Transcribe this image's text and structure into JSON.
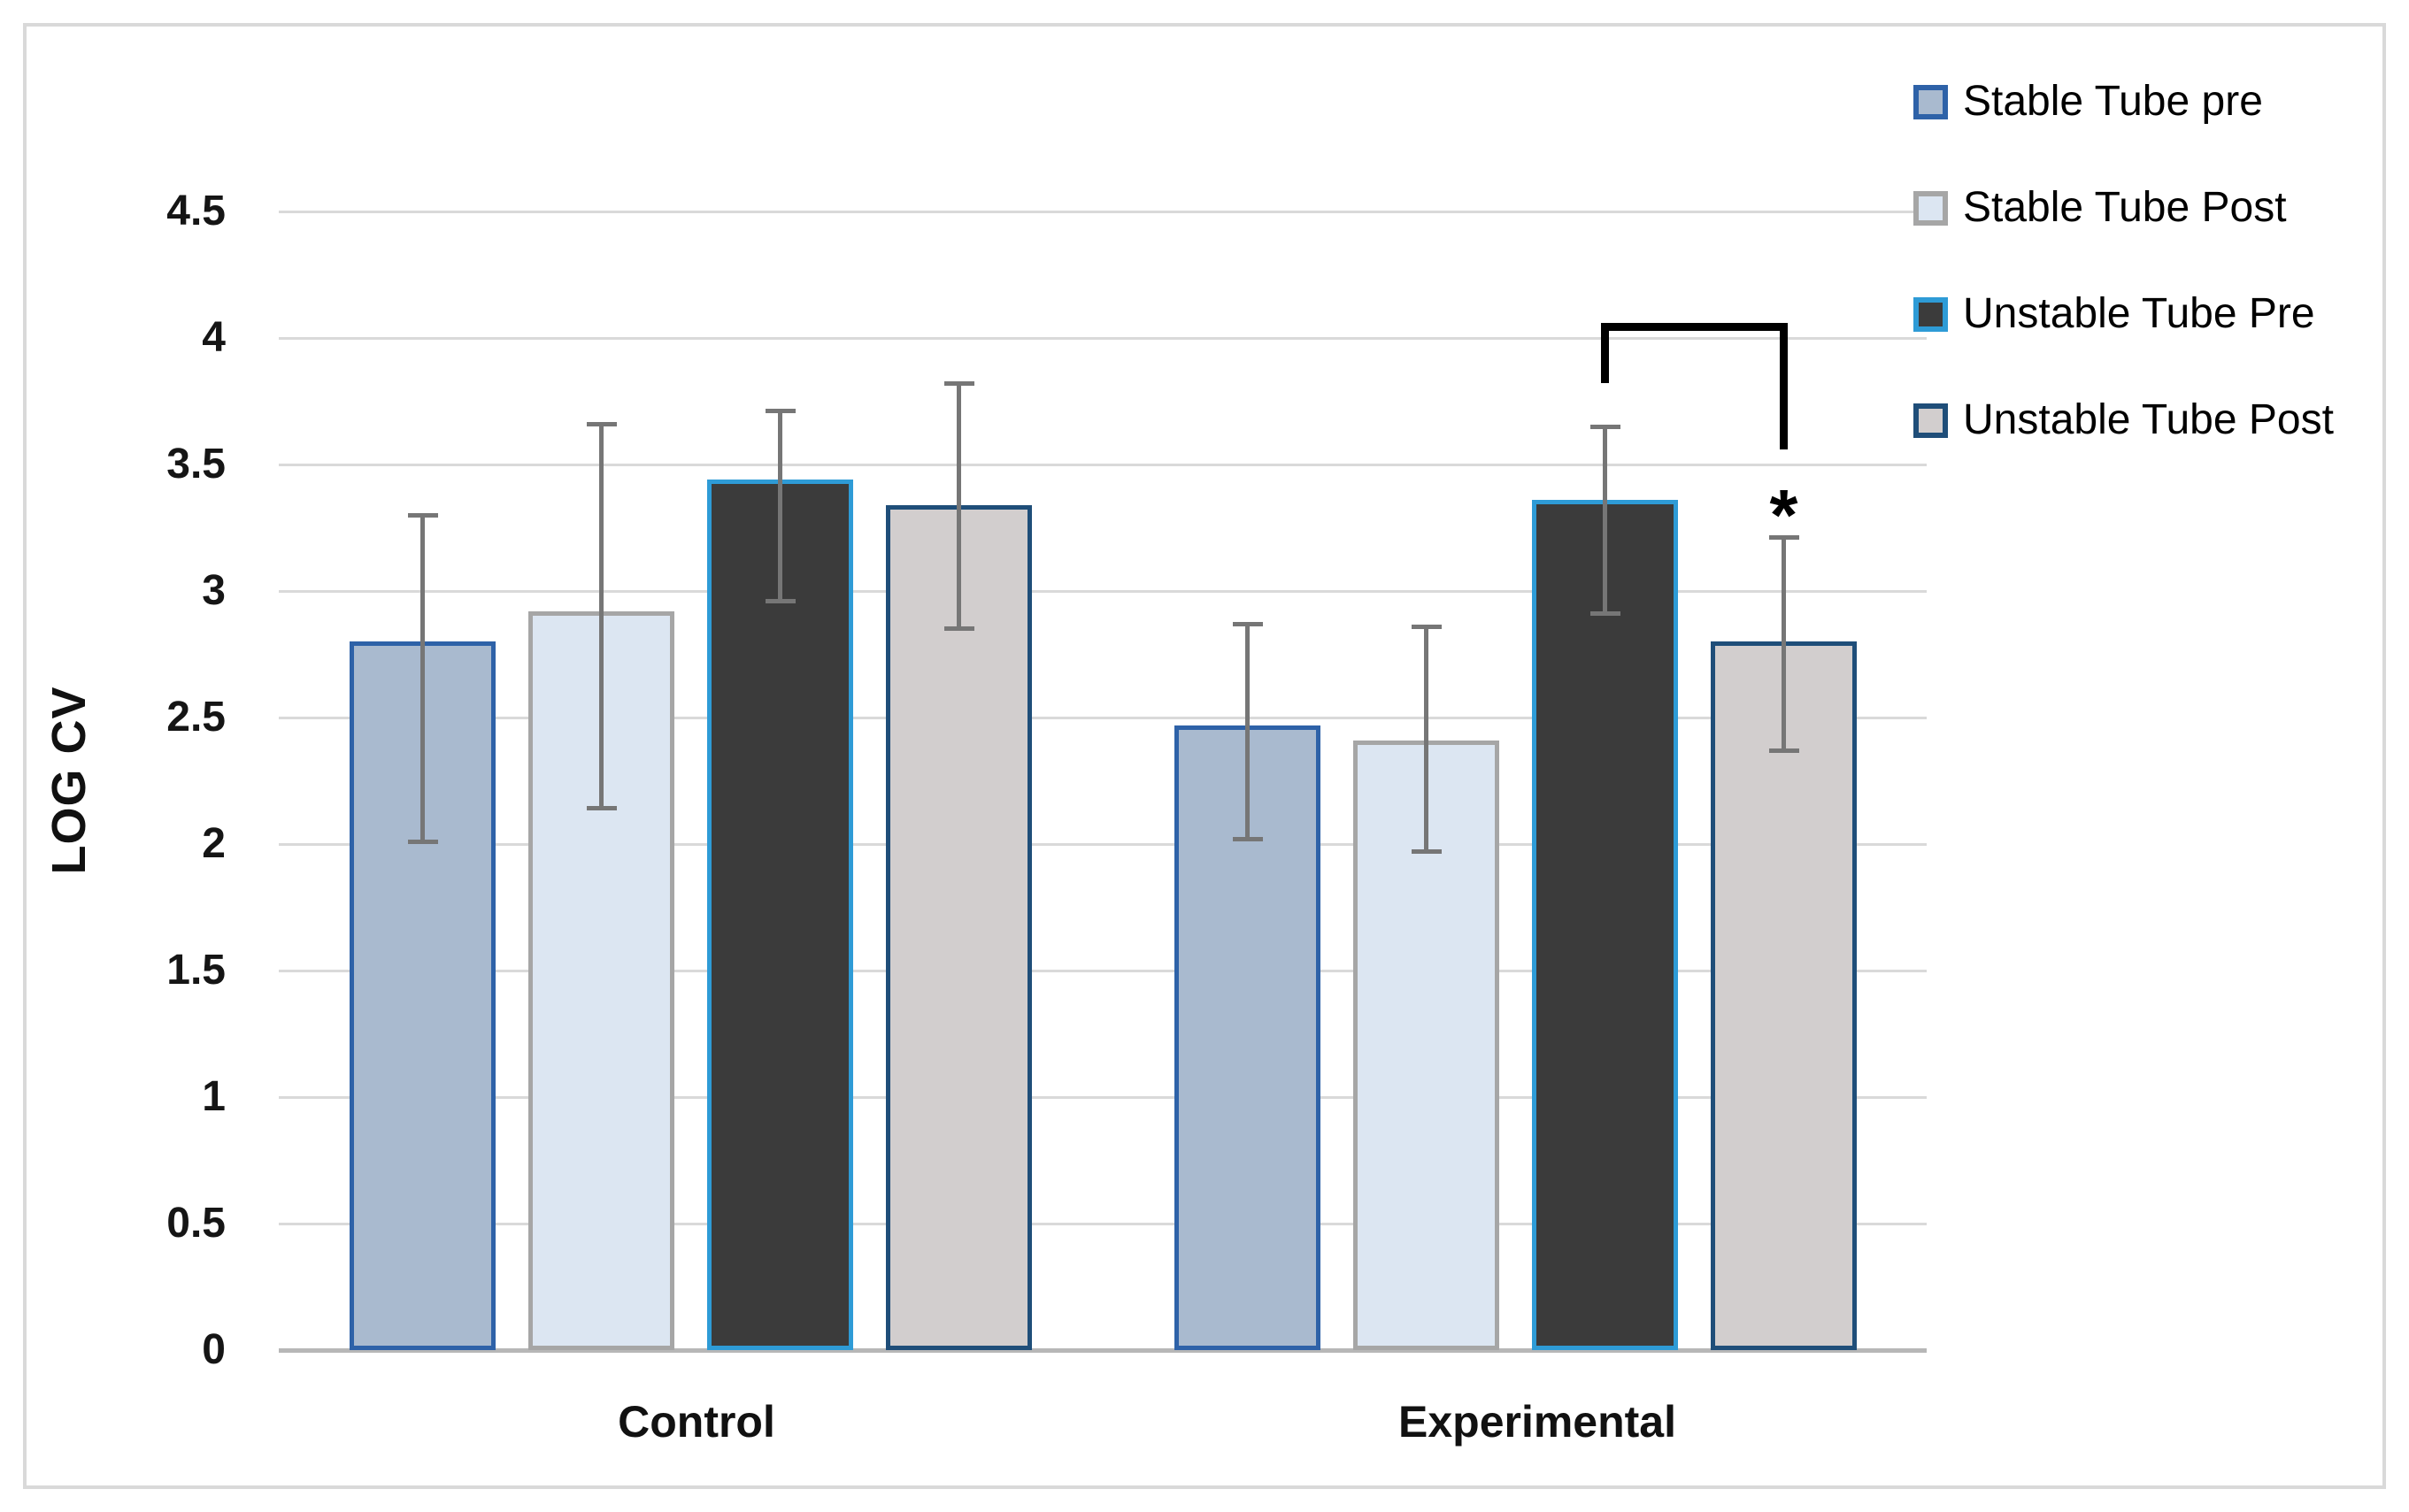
{
  "figure": {
    "background": "#ffffff",
    "border_color": "#d9d9d9"
  },
  "chart_data": {
    "type": "bar",
    "title": "",
    "xlabel": "",
    "ylabel": "LOG CV",
    "ylim": [
      0,
      4.5
    ],
    "grid": "horizontal",
    "legend_position": "top-right",
    "yticks": [
      {
        "value": 0,
        "label": "0"
      },
      {
        "value": 0.5,
        "label": "0.5"
      },
      {
        "value": 1,
        "label": "1"
      },
      {
        "value": 1.5,
        "label": "1.5"
      },
      {
        "value": 2,
        "label": "2"
      },
      {
        "value": 2.5,
        "label": "2.5"
      },
      {
        "value": 3,
        "label": "3"
      },
      {
        "value": 3.5,
        "label": "3.5"
      },
      {
        "value": 4,
        "label": "4"
      },
      {
        "value": 4.5,
        "label": "4.5"
      }
    ],
    "categories": [
      "Control",
      "Experimental"
    ],
    "series": [
      {
        "name": "Stable Tube pre",
        "fill": "#A9BACF",
        "border": "#2E62A8",
        "values": [
          2.8,
          2.47
        ],
        "error_top": [
          3.3,
          2.87
        ],
        "error_bottom": [
          2.01,
          2.02
        ]
      },
      {
        "name": "Stable Tube Post",
        "fill": "#DCE6F2",
        "border": "#A6A6A6",
        "values": [
          2.92,
          2.41
        ],
        "error_top": [
          3.66,
          2.86
        ],
        "error_bottom": [
          2.14,
          1.97
        ]
      },
      {
        "name": "Unstable Tube Pre",
        "fill": "#3B3B3B",
        "border": "#2E9BD6",
        "values": [
          3.44,
          3.36
        ],
        "error_top": [
          3.71,
          3.65
        ],
        "error_bottom": [
          2.96,
          2.91
        ]
      },
      {
        "name": "Unstable Tube Post",
        "fill": "#D2CECE",
        "border": "#1F4E79",
        "values": [
          3.34,
          2.8
        ],
        "error_top": [
          3.82,
          3.21
        ],
        "error_bottom": [
          2.85,
          2.37
        ]
      }
    ],
    "error_bar_color": "#767676",
    "annotations": {
      "asterisk": {
        "label": "*",
        "group": "Experimental",
        "series": "Unstable Tube Post",
        "value": 3.29
      },
      "bracket": {
        "group": "Experimental",
        "from_series": "Unstable Tube Pre",
        "to_series": "Unstable Tube Post",
        "top_value": 4.06,
        "from_drop_value": 3.82,
        "to_drop_value": 3.56,
        "color": "#000000"
      }
    }
  }
}
